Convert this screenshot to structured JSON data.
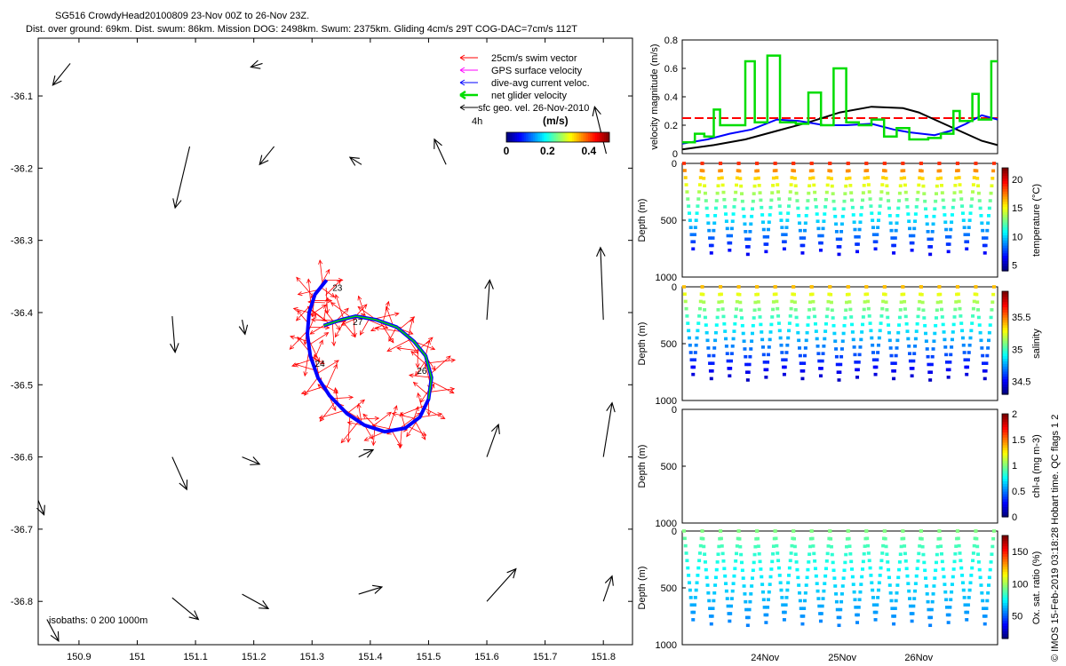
{
  "header": {
    "line1": "SG516 CrowdyHead20100809 23-Nov 00Z to 26-Nov 23Z.",
    "line2": "Dist. over ground: 69km. Dist. swum: 86km. Mission DOG: 2498km. Swum: 2375km. Gliding 4cm/s 29T COG-DAC=7cm/s 112T"
  },
  "side_note": "© IMOS 15-Feb-2019 03:18:28 Hobart time. QC flags 1  2",
  "chart_data": [
    {
      "type": "scatter",
      "id": "track_map",
      "title": "",
      "xlim": [
        150.83,
        151.85
      ],
      "ylim": [
        -36.86,
        -36.02
      ],
      "x_ticks": [
        "150.9",
        "151",
        "151.1",
        "151.2",
        "151.3",
        "151.4",
        "151.5",
        "151.6",
        "151.7",
        "151.8"
      ],
      "x_tick_values": [
        150.9,
        151.0,
        151.1,
        151.2,
        151.3,
        151.4,
        151.5,
        151.6,
        151.7,
        151.8
      ],
      "y_ticks": [
        "-36.1",
        "-36.2",
        "-36.3",
        "-36.4",
        "-36.5",
        "-36.6",
        "-36.7",
        "-36.8"
      ],
      "y_tick_values": [
        -36.1,
        -36.2,
        -36.3,
        -36.4,
        -36.5,
        -36.6,
        -36.7,
        -36.8
      ],
      "legend": {
        "placement": "top-right",
        "entries": [
          {
            "label": "25cm/s swim vector",
            "color": "#ff0000"
          },
          {
            "label": "GPS surface velocity",
            "color": "#ff00ff"
          },
          {
            "label": "dive-avg current veloc.",
            "color": "#0000ff"
          },
          {
            "label": "net glider velocity",
            "color": "#00dd00"
          },
          {
            "label": "sfc geo. vel. 26-Nov-2010",
            "color": "#000000"
          }
        ]
      },
      "scale_label": "4h",
      "colorbar": {
        "label": "(m/s)",
        "ticks": [
          "0",
          "0.2",
          "0.4"
        ],
        "tick_values": [
          0,
          0.2,
          0.4
        ],
        "range": [
          0,
          0.5
        ]
      },
      "isobath_label": "isobaths: 0   200  1000m",
      "day_labels": [
        {
          "text": "23",
          "lon": 151.335,
          "lat": -36.37
        },
        {
          "text": "24",
          "lon": 151.305,
          "lat": -36.475
        },
        {
          "text": "27",
          "lon": 151.37,
          "lat": -36.417
        },
        {
          "text": "26",
          "lon": 151.48,
          "lat": -36.485
        }
      ],
      "track": [
        [
          151.325,
          -36.355
        ],
        [
          151.305,
          -36.375
        ],
        [
          151.295,
          -36.4
        ],
        [
          151.292,
          -36.43
        ],
        [
          151.297,
          -36.46
        ],
        [
          151.31,
          -36.49
        ],
        [
          151.33,
          -36.515
        ],
        [
          151.36,
          -36.54
        ],
        [
          151.39,
          -36.556
        ],
        [
          151.425,
          -36.565
        ],
        [
          151.46,
          -36.56
        ],
        [
          151.485,
          -36.545
        ],
        [
          151.5,
          -36.52
        ],
        [
          151.505,
          -36.49
        ],
        [
          151.495,
          -36.46
        ],
        [
          151.475,
          -36.44
        ],
        [
          151.445,
          -36.42
        ],
        [
          151.41,
          -36.41
        ],
        [
          151.375,
          -36.405
        ],
        [
          151.35,
          -36.41
        ],
        [
          151.32,
          -36.418
        ]
      ],
      "geo_vectors": [
        [
          150.885,
          -36.055,
          150.855,
          -36.085
        ],
        [
          151.215,
          -36.055,
          151.195,
          -36.06
        ],
        [
          151.09,
          -36.17,
          151.065,
          -36.255
        ],
        [
          151.235,
          -36.17,
          151.21,
          -36.195
        ],
        [
          151.385,
          -36.195,
          151.365,
          -36.185
        ],
        [
          151.53,
          -36.195,
          151.51,
          -36.16
        ],
        [
          151.805,
          -36.18,
          151.785,
          -36.115
        ],
        [
          151.8,
          -36.41,
          151.795,
          -36.31
        ],
        [
          151.6,
          -36.41,
          151.605,
          -36.355
        ],
        [
          151.06,
          -36.405,
          151.065,
          -36.455
        ],
        [
          151.18,
          -36.41,
          151.185,
          -36.43
        ],
        [
          151.6,
          -36.6,
          151.62,
          -36.555
        ],
        [
          151.8,
          -36.6,
          151.815,
          -36.525
        ],
        [
          151.06,
          -36.6,
          151.085,
          -36.645
        ],
        [
          151.18,
          -36.6,
          151.21,
          -36.61
        ],
        [
          151.38,
          -36.6,
          151.405,
          -36.59
        ],
        [
          150.83,
          -36.66,
          150.84,
          -36.68
        ],
        [
          151.6,
          -36.8,
          151.65,
          -36.755
        ],
        [
          151.8,
          -36.8,
          151.815,
          -36.765
        ],
        [
          151.06,
          -36.795,
          151.105,
          -36.825
        ],
        [
          151.18,
          -36.79,
          151.225,
          -36.81
        ],
        [
          151.38,
          -36.79,
          151.42,
          -36.78
        ],
        [
          150.845,
          -36.825,
          150.865,
          -36.855
        ]
      ]
    },
    {
      "type": "line",
      "id": "velocity_magnitude",
      "ylabel": "velocity magnitude (m/s)",
      "ylim": [
        0,
        0.8
      ],
      "y_ticks": [
        "0",
        "0.2",
        "0.4",
        "0.6",
        "0.8"
      ],
      "y_tick_values": [
        0,
        0.2,
        0.4,
        0.6,
        0.8
      ],
      "xlim": [
        0,
        100
      ],
      "series": [
        {
          "name": "",
          "color": "#ff0000",
          "dashed": true,
          "x": [
            0,
            100
          ],
          "y": [
            0.25,
            0.25
          ]
        },
        {
          "name": "",
          "color": "#000000",
          "x": [
            0,
            10,
            20,
            30,
            40,
            50,
            60,
            70,
            75,
            80,
            90,
            95,
            100
          ],
          "y": [
            0.03,
            0.06,
            0.1,
            0.16,
            0.22,
            0.29,
            0.33,
            0.32,
            0.29,
            0.24,
            0.14,
            0.09,
            0.06
          ]
        },
        {
          "name": "",
          "color": "#0000ff",
          "x": [
            0,
            8,
            15,
            22,
            30,
            37,
            45,
            52,
            60,
            67,
            72,
            80,
            85,
            90,
            95,
            100
          ],
          "y": [
            0.07,
            0.1,
            0.14,
            0.17,
            0.24,
            0.23,
            0.2,
            0.2,
            0.21,
            0.17,
            0.15,
            0.13,
            0.16,
            0.21,
            0.27,
            0.24
          ]
        },
        {
          "name": "",
          "color": "#00dd00",
          "x": [
            0,
            4,
            4,
            7,
            7,
            10,
            10,
            12,
            12,
            20,
            20,
            23,
            23,
            27,
            27,
            31,
            31,
            36,
            36,
            40,
            40,
            44,
            44,
            48,
            48,
            52,
            52,
            56,
            56,
            60,
            60,
            64,
            64,
            68,
            68,
            72,
            72,
            78,
            78,
            82,
            82,
            86,
            86,
            88,
            88,
            92,
            92,
            94,
            94,
            98,
            98,
            100
          ],
          "y": [
            0.08,
            0.08,
            0.14,
            0.14,
            0.12,
            0.12,
            0.31,
            0.31,
            0.2,
            0.2,
            0.65,
            0.65,
            0.22,
            0.22,
            0.69,
            0.69,
            0.22,
            0.22,
            0.21,
            0.21,
            0.43,
            0.43,
            0.2,
            0.2,
            0.6,
            0.6,
            0.22,
            0.22,
            0.2,
            0.2,
            0.24,
            0.24,
            0.12,
            0.12,
            0.18,
            0.18,
            0.1,
            0.1,
            0.11,
            0.11,
            0.14,
            0.14,
            0.3,
            0.3,
            0.23,
            0.23,
            0.42,
            0.42,
            0.24,
            0.24,
            0.65,
            0.65
          ]
        }
      ]
    },
    {
      "type": "scatter",
      "id": "temperature_section",
      "ylabel": "Depth (m)",
      "colorbar_label": "temperature (°C)",
      "ylim": [
        0,
        1000
      ],
      "y_ticks": [
        "0",
        "500",
        "1000"
      ],
      "y_tick_values": [
        0,
        500,
        1000
      ],
      "colorbar": {
        "range": [
          4,
          22
        ],
        "ticks": [
          "5",
          "10",
          "15",
          "20"
        ],
        "tick_values": [
          5,
          10,
          15,
          20
        ]
      },
      "dives": 17,
      "surface_value": 19,
      "deep_value": 6,
      "max_depth": 800
    },
    {
      "type": "scatter",
      "id": "salinity_section",
      "ylabel": "Depth (m)",
      "colorbar_label": "salinity",
      "ylim": [
        0,
        1000
      ],
      "y_ticks": [
        "0",
        "500",
        "1000"
      ],
      "y_tick_values": [
        0,
        500,
        1000
      ],
      "colorbar": {
        "range": [
          34.3,
          35.9
        ],
        "ticks": [
          "34.5",
          "35",
          "35.5"
        ],
        "tick_values": [
          34.5,
          35.0,
          35.5
        ]
      },
      "dives": 17,
      "surface_value": 35.4,
      "deep_value": 34.4,
      "max_depth": 820
    },
    {
      "type": "scatter",
      "id": "chla_section",
      "ylabel": "Depth (m)",
      "colorbar_label": "chl-a (mg m-3)",
      "ylim": [
        0,
        1000
      ],
      "y_ticks": [
        "0",
        "500",
        "1000"
      ],
      "y_tick_values": [
        0,
        500,
        1000
      ],
      "colorbar": {
        "range": [
          0,
          2
        ],
        "ticks": [
          "0",
          "0.5",
          "1",
          "1.5",
          "2"
        ],
        "tick_values": [
          0,
          0.5,
          1,
          1.5,
          2
        ]
      },
      "dives": 0
    },
    {
      "type": "scatter",
      "id": "oxygen_section",
      "ylabel": "Depth (m)",
      "colorbar_label": "Ox. sat. ratio (%)",
      "ylim": [
        0,
        1000
      ],
      "y_ticks": [
        "0",
        "500",
        "1000"
      ],
      "y_tick_values": [
        0,
        500,
        1000
      ],
      "colorbar": {
        "range": [
          15,
          175
        ],
        "ticks": [
          "50",
          "100",
          "150"
        ],
        "tick_values": [
          50,
          100,
          150
        ]
      },
      "dives": 17,
      "surface_value": 95,
      "deep_value": 55,
      "max_depth": 830
    }
  ],
  "time_axis": {
    "ticks": [
      "24Nov",
      "25Nov",
      "26Nov"
    ],
    "tick_fractions": [
      0.2625,
      0.5075,
      0.75
    ]
  }
}
